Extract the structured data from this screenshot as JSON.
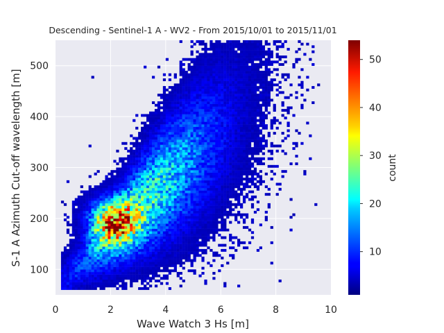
{
  "chart_data": {
    "type": "heatmap",
    "title": "Descending - Sentinel-1 A - WV2 - From 2015/10/01 to 2015/11/01",
    "xlabel": "Wave Watch 3 Hs [m]",
    "ylabel": "S-1 A Azimuth Cut-off wavelength [m]",
    "xlim": [
      0,
      10
    ],
    "ylim": [
      50,
      550
    ],
    "xticks": [
      0,
      2,
      4,
      6,
      8,
      10
    ],
    "yticks": [
      100,
      200,
      300,
      400,
      500
    ],
    "bins": {
      "nx": 100,
      "ny": 100
    },
    "colorbar": {
      "label": "count",
      "colormap": "jet",
      "range": [
        1,
        54
      ],
      "ticks": [
        10,
        20,
        30,
        40,
        50
      ]
    },
    "density_model": {
      "description": "2D histogram of collocated points; peak count ~54 near Hs 2.1 m, cut-off 195 m; ridge roughly linear",
      "peak": {
        "x": 2.1,
        "y": 195,
        "count": 54
      },
      "ridge": {
        "x_start": 1.2,
        "y_start": 125,
        "x_end": 6.5,
        "y_end": 400
      },
      "extent": {
        "x_min": 0.2,
        "x_max": 9.6,
        "y_min": 60,
        "y_max": 550
      }
    },
    "grid": true,
    "background": "#eaeaf2"
  }
}
